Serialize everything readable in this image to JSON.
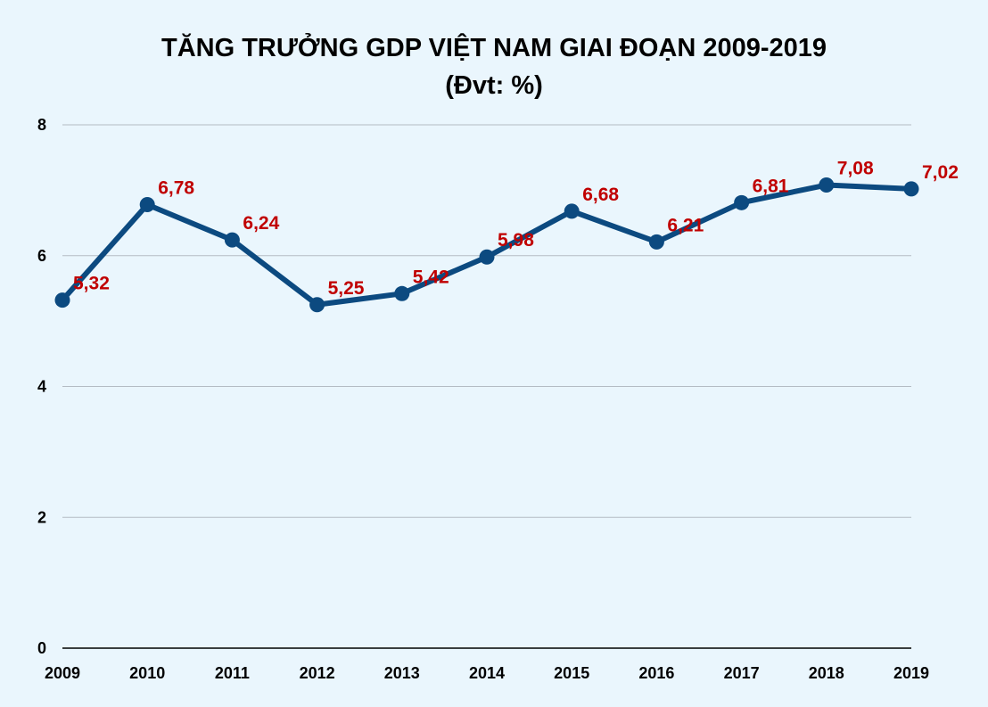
{
  "chart_data": {
    "type": "line",
    "title": "TĂNG TRƯỞNG GDP VIỆT NAM GIAI ĐOẠN 2009-2019",
    "subtitle": "(Đvt: %)",
    "xlabel": "",
    "ylabel": "",
    "categories": [
      "2009",
      "2010",
      "2011",
      "2012",
      "2013",
      "2014",
      "2015",
      "2016",
      "2017",
      "2018",
      "2019"
    ],
    "series": [
      {
        "values": [
          5.32,
          6.78,
          6.24,
          5.25,
          5.42,
          5.98,
          6.68,
          6.21,
          6.81,
          7.08,
          7.02
        ],
        "data_labels": [
          "5,32",
          "6,78",
          "6,24",
          "5,25",
          "5,42",
          "5,98",
          "6,68",
          "6,21",
          "6,81",
          "7,08",
          "7,02"
        ]
      }
    ],
    "ylim": [
      0,
      8
    ],
    "yticks": [
      "0",
      "2",
      "4",
      "6",
      "8"
    ],
    "grid": true,
    "legend": "none",
    "colors": {
      "line": "#0c4a80",
      "marker": "#0c4a80",
      "data_label": "#c00000",
      "grid": "#b4bcc4",
      "background": "#eaf6fd"
    }
  }
}
